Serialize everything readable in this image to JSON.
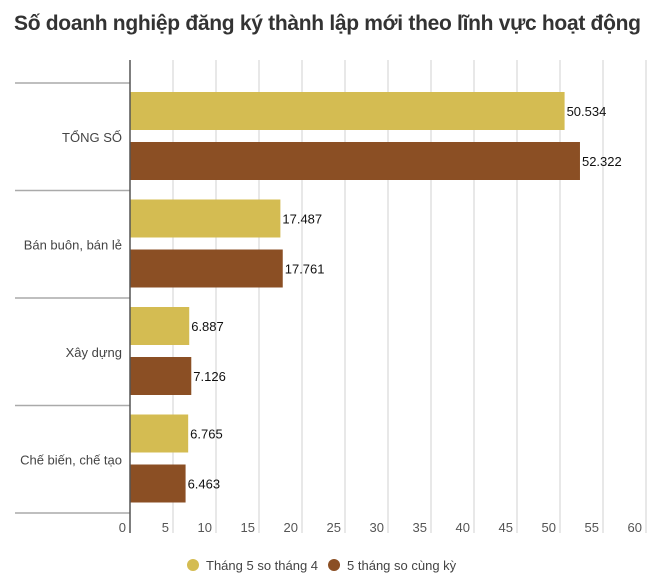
{
  "chart_data": {
    "type": "bar",
    "orientation": "horizontal",
    "title": "Số doanh nghiệp đăng ký thành lập mới theo lĩnh vực hoạt động",
    "categories": [
      "TỔNG SỐ",
      "Bán buôn, bán lẻ",
      "Xây dựng",
      "Chế biến, chế tạo"
    ],
    "series": [
      {
        "name": "Tháng 5 so tháng 4",
        "color": "#D4BC52",
        "values": [
          50.534,
          17.487,
          6.887,
          6.765
        ],
        "labels": [
          "50.534",
          "17.487",
          "6.887",
          "6.765"
        ]
      },
      {
        "name": "5 tháng so cùng kỳ",
        "color": "#8B4F24",
        "values": [
          52.322,
          17.761,
          7.126,
          6.463
        ],
        "labels": [
          "52.322",
          "17.761",
          "7.126",
          "6.463"
        ]
      }
    ],
    "xlim": [
      0,
      60
    ],
    "xticks": [
      0,
      5,
      10,
      15,
      20,
      25,
      30,
      35,
      40,
      45,
      50,
      55,
      60
    ],
    "grid": true,
    "legend": "bottom-center"
  }
}
